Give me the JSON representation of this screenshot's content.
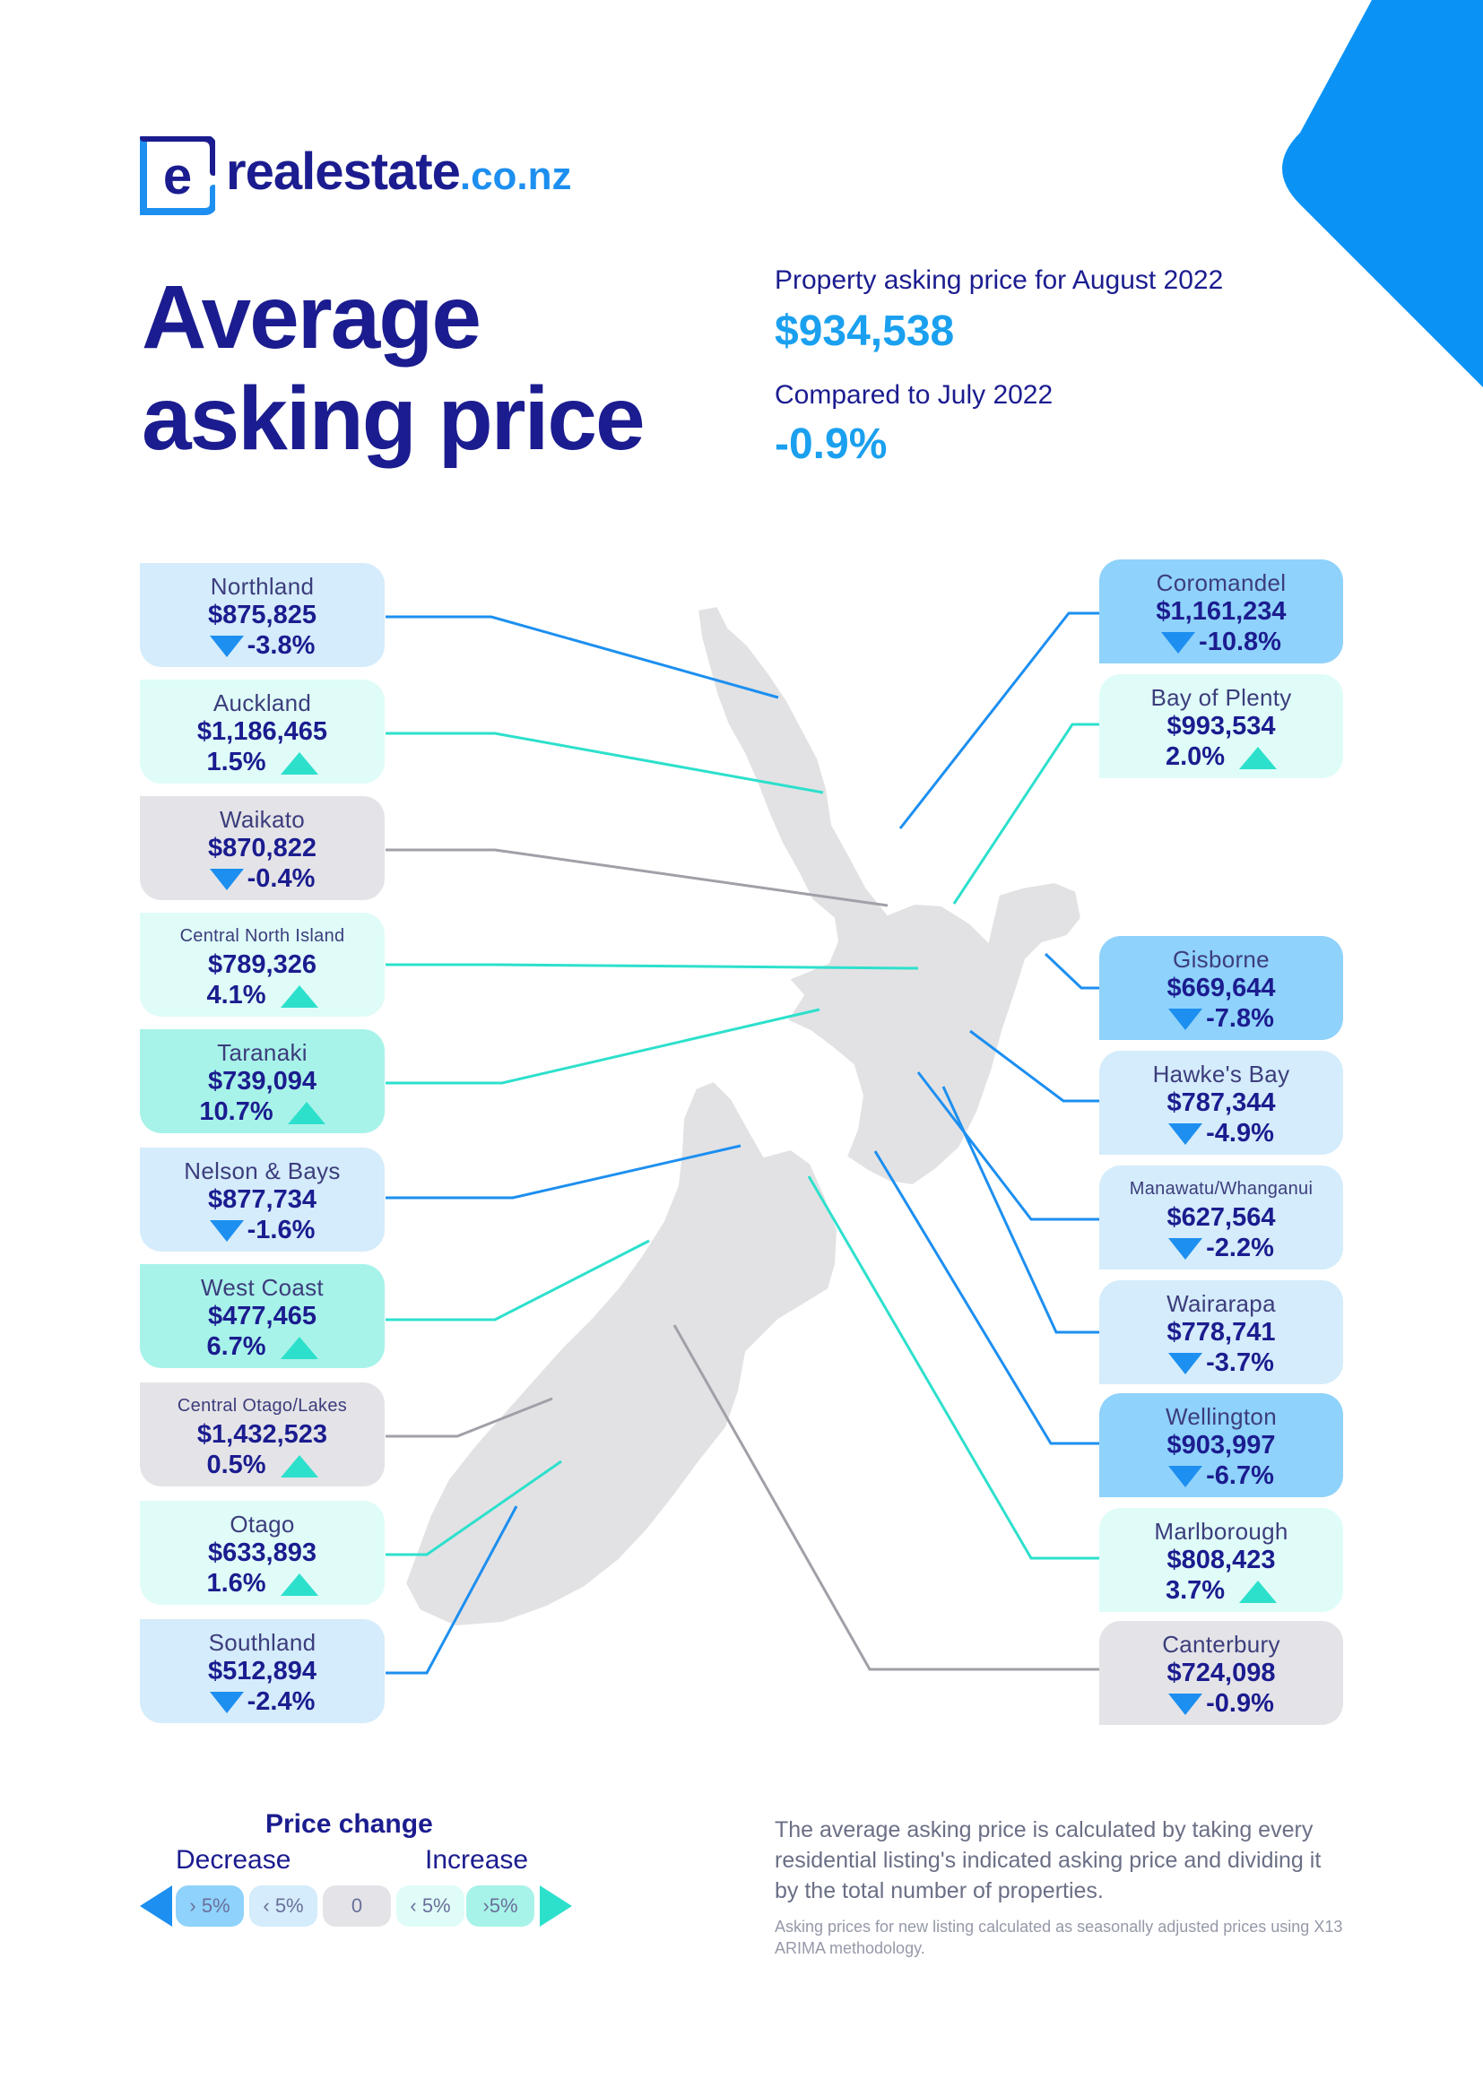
{
  "brand": {
    "name": "realestate",
    "tld": ".co.nz",
    "logo_letter": "e"
  },
  "title": {
    "line1": "Average",
    "line2": "asking price"
  },
  "summary": {
    "asking_label": "Property asking price for August 2022",
    "asking_value": "$934,538",
    "compare_label": "Compared to July 2022",
    "compare_value": "-0.9%"
  },
  "colors": {
    "navy": "#1b1c8f",
    "blue": "#1d8ff0",
    "teal": "#2de0cc",
    "grey_line": "#a0a0a8",
    "decrease_big": "#8fd2fb",
    "decrease_small": "#d4ecfb",
    "neutral": "#e4e4e8",
    "increase_small": "#dffcf8",
    "increase_big": "#a8f3e9",
    "map": "#e2e2e4"
  },
  "regions_left": [
    {
      "name": "Northland",
      "price": "$875,825",
      "change": "-3.8%",
      "direction": "down",
      "band": "decrease_small"
    },
    {
      "name": "Auckland",
      "price": "$1,186,465",
      "change": "1.5%",
      "direction": "up",
      "band": "increase_small"
    },
    {
      "name": "Waikato",
      "price": "$870,822",
      "change": "-0.4%",
      "direction": "down",
      "band": "neutral"
    },
    {
      "name": "Central North Island",
      "price": "$789,326",
      "change": "4.1%",
      "direction": "up",
      "band": "increase_small"
    },
    {
      "name": "Taranaki",
      "price": "$739,094",
      "change": "10.7%",
      "direction": "up",
      "band": "increase_big"
    },
    {
      "name": "Nelson & Bays",
      "price": "$877,734",
      "change": "-1.6%",
      "direction": "down",
      "band": "decrease_small"
    },
    {
      "name": "West Coast",
      "price": "$477,465",
      "change": "6.7%",
      "direction": "up",
      "band": "increase_big"
    },
    {
      "name": "Central Otago/Lakes",
      "price": "$1,432,523",
      "change": "0.5%",
      "direction": "up",
      "band": "neutral"
    },
    {
      "name": "Otago",
      "price": "$633,893",
      "change": "1.6%",
      "direction": "up",
      "band": "increase_small"
    },
    {
      "name": "Southland",
      "price": "$512,894",
      "change": "-2.4%",
      "direction": "down",
      "band": "decrease_small"
    }
  ],
  "regions_right": [
    {
      "name": "Coromandel",
      "price": "$1,161,234",
      "change": "-10.8%",
      "direction": "down",
      "band": "decrease_big"
    },
    {
      "name": "Bay of Plenty",
      "price": "$993,534",
      "change": "2.0%",
      "direction": "up",
      "band": "increase_small"
    },
    {
      "name": "Gisborne",
      "price": "$669,644",
      "change": "-7.8%",
      "direction": "down",
      "band": "decrease_big"
    },
    {
      "name": "Hawke's Bay",
      "price": "$787,344",
      "change": "-4.9%",
      "direction": "down",
      "band": "decrease_small"
    },
    {
      "name": "Manawatu/Whanganui",
      "price": "$627,564",
      "change": "-2.2%",
      "direction": "down",
      "band": "decrease_small"
    },
    {
      "name": "Wairarapa",
      "price": "$778,741",
      "change": "-3.7%",
      "direction": "down",
      "band": "decrease_small"
    },
    {
      "name": "Wellington",
      "price": "$903,997",
      "change": "-6.7%",
      "direction": "down",
      "band": "decrease_big"
    },
    {
      "name": "Marlborough",
      "price": "$808,423",
      "change": "3.7%",
      "direction": "up",
      "band": "increase_small"
    },
    {
      "name": "Canterbury",
      "price": "$724,098",
      "change": "-0.9%",
      "direction": "down",
      "band": "neutral"
    }
  ],
  "legend": {
    "title": "Price change",
    "decrease_label": "Decrease",
    "increase_label": "Increase",
    "pills": [
      "› 5%",
      "‹ 5%",
      "0",
      "‹ 5%",
      "›5%"
    ]
  },
  "footnote": "The average asking price is calculated by taking every residential listing's indicated asking price and dividing it by the total number of properties.",
  "finenote": "Asking prices for new listing calculated as seasonally adjusted prices using X13 ARIMA methodology."
}
